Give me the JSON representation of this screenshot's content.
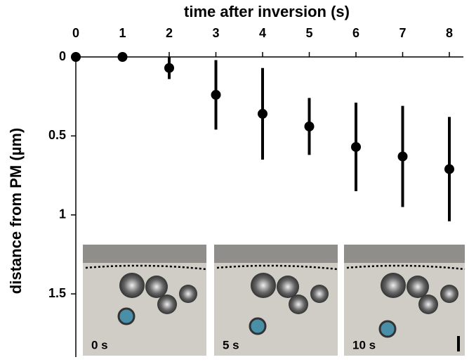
{
  "chart_data": {
    "type": "errorbar",
    "title": "time after inversion (s)",
    "y_label": "distance from PM (µm)",
    "x": [
      0,
      1,
      2,
      3,
      4,
      5,
      6,
      7,
      8
    ],
    "series": [
      {
        "color": "#000000",
        "values": [
          0,
          0,
          0.07,
          0.24,
          0.36,
          0.44,
          0.57,
          0.63,
          0.71
        ],
        "errors": [
          0,
          0,
          0.07,
          0.22,
          0.29,
          0.18,
          0.28,
          0.32,
          0.33
        ]
      }
    ],
    "xlim": [
      0,
      8
    ],
    "xticks": [
      0,
      1,
      2,
      3,
      4,
      5,
      6,
      7,
      8
    ],
    "ylim": [
      0,
      1.9
    ],
    "yticks": [
      0,
      0.5,
      1,
      1.5
    ],
    "y_inverted": true,
    "x_axis_top": true,
    "insets": [
      {
        "label": "0 s"
      },
      {
        "label": "5 s"
      },
      {
        "label": "10 s"
      }
    ]
  }
}
